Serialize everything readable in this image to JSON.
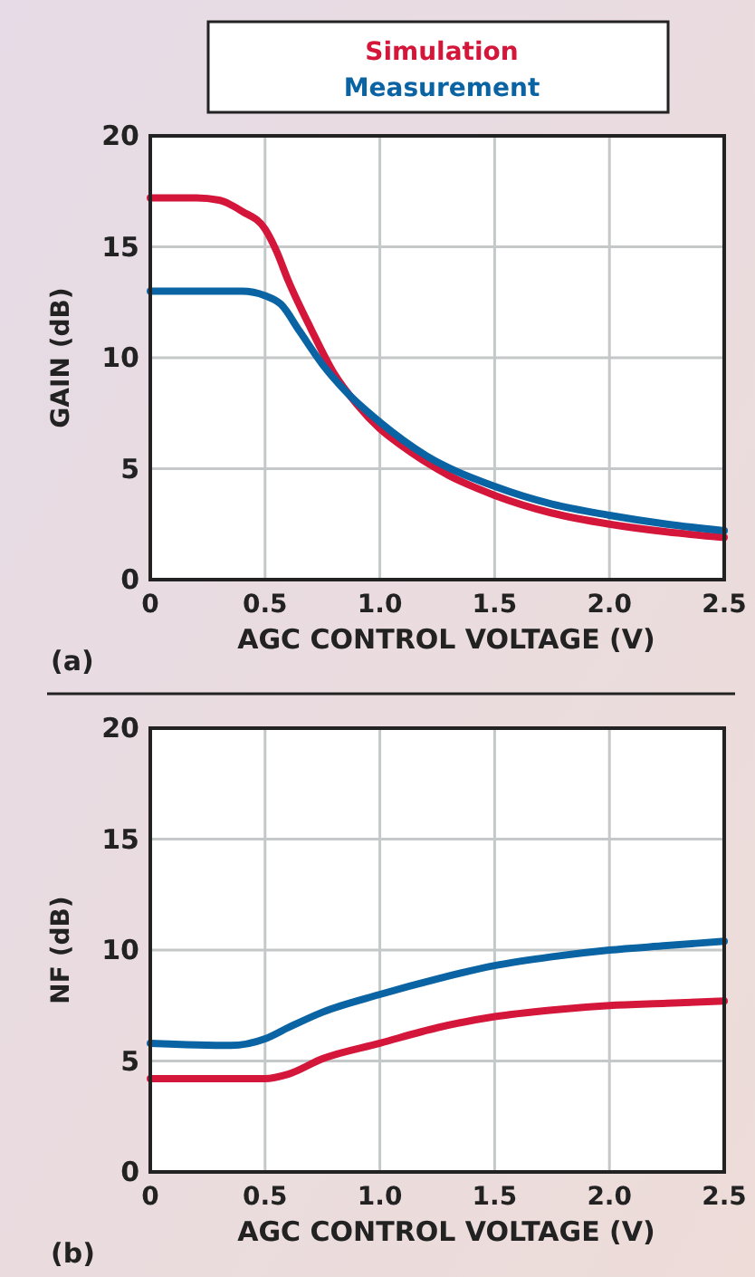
{
  "chart_data": [
    {
      "type": "line",
      "ylabel": "GAIN (dB)",
      "xlabel": "AGC CONTROL VOLTAGE (V)",
      "annotations": [
        "(a)"
      ],
      "xlim": [
        0,
        2.5
      ],
      "ylim": [
        0,
        20
      ],
      "xticks": [
        0,
        {
          "value": 0.5,
          "label": "0.5"
        },
        {
          "value": 1,
          "label": "1.0"
        },
        {
          "value": 1.5,
          "label": "1.5"
        },
        {
          "value": 2,
          "label": "2.0"
        },
        {
          "value": 2.5,
          "label": "2.5"
        }
      ],
      "yticks": [
        0,
        5,
        10,
        15,
        20
      ],
      "grid": true,
      "legend": "top",
      "line_style": "solid",
      "marker": "none",
      "series": [
        {
          "name": "Simulation",
          "color": "#d4163a",
          "x": [
            0,
            0.1,
            0.2,
            0.3,
            0.4,
            0.5,
            0.55,
            0.6,
            0.7,
            0.8,
            0.9,
            1.0,
            1.1,
            1.2,
            1.3,
            1.5,
            1.75,
            2.0,
            2.25,
            2.5
          ],
          "values": [
            17.2,
            17.2,
            17.2,
            17.1,
            16.6,
            15.8,
            14.8,
            13.5,
            11.3,
            9.3,
            7.9,
            6.8,
            6.0,
            5.3,
            4.7,
            3.8,
            3.0,
            2.5,
            2.15,
            1.9
          ]
        },
        {
          "name": "Measurement",
          "color": "#0a64a4",
          "x": [
            0,
            0.2,
            0.4,
            0.5,
            0.57,
            0.65,
            0.75,
            0.85,
            1.0,
            1.2,
            1.5,
            1.75,
            2.0,
            2.25,
            2.5
          ],
          "values": [
            13.0,
            13.0,
            13.0,
            12.8,
            12.4,
            11.2,
            9.7,
            8.5,
            7.1,
            5.6,
            4.2,
            3.4,
            2.9,
            2.5,
            2.2
          ]
        }
      ]
    },
    {
      "type": "line",
      "ylabel": "NF (dB)",
      "xlabel": "AGC CONTROL VOLTAGE (V)",
      "annotations": [
        "(b)"
      ],
      "xlim": [
        0,
        2.5
      ],
      "ylim": [
        0,
        20
      ],
      "xticks": [
        0,
        {
          "value": 0.5,
          "label": "0.5"
        },
        {
          "value": 1,
          "label": "1.0"
        },
        {
          "value": 1.5,
          "label": "1.5"
        },
        {
          "value": 2,
          "label": "2.0"
        },
        {
          "value": 2.5,
          "label": "2.5"
        }
      ],
      "yticks": [
        0,
        5,
        10,
        15,
        20
      ],
      "grid": true,
      "line_style": "solid",
      "marker": "none",
      "series": [
        {
          "color": "#d4163a",
          "x": [
            0,
            0.5,
            0.6,
            0.75,
            1.0,
            1.25,
            1.5,
            1.75,
            2.0,
            2.25,
            2.5
          ],
          "values": [
            4.2,
            4.2,
            4.4,
            5.1,
            5.8,
            6.5,
            7.0,
            7.3,
            7.5,
            7.6,
            7.7
          ]
        },
        {
          "color": "#0a64a4",
          "x": [
            0,
            0.35,
            0.5,
            0.6,
            0.75,
            1.0,
            1.25,
            1.5,
            1.75,
            2.0,
            2.25,
            2.5
          ],
          "values": [
            5.8,
            5.7,
            6.0,
            6.5,
            7.2,
            8.0,
            8.7,
            9.3,
            9.7,
            10.0,
            10.2,
            10.4
          ]
        }
      ]
    }
  ]
}
